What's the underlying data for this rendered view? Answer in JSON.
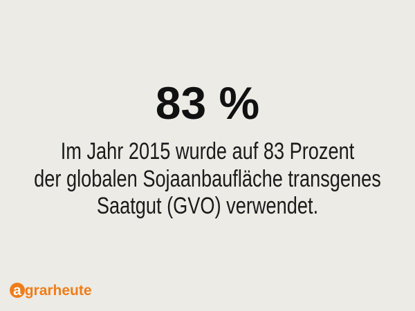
{
  "headline": "83 %",
  "body": [
    "Im Jahr 2015 wurde auf 83 Prozent",
    "der globalen Sojaanbaufläche transgenes",
    "Saatgut (GVO) verwendet."
  ],
  "logo": "agrarheute"
}
